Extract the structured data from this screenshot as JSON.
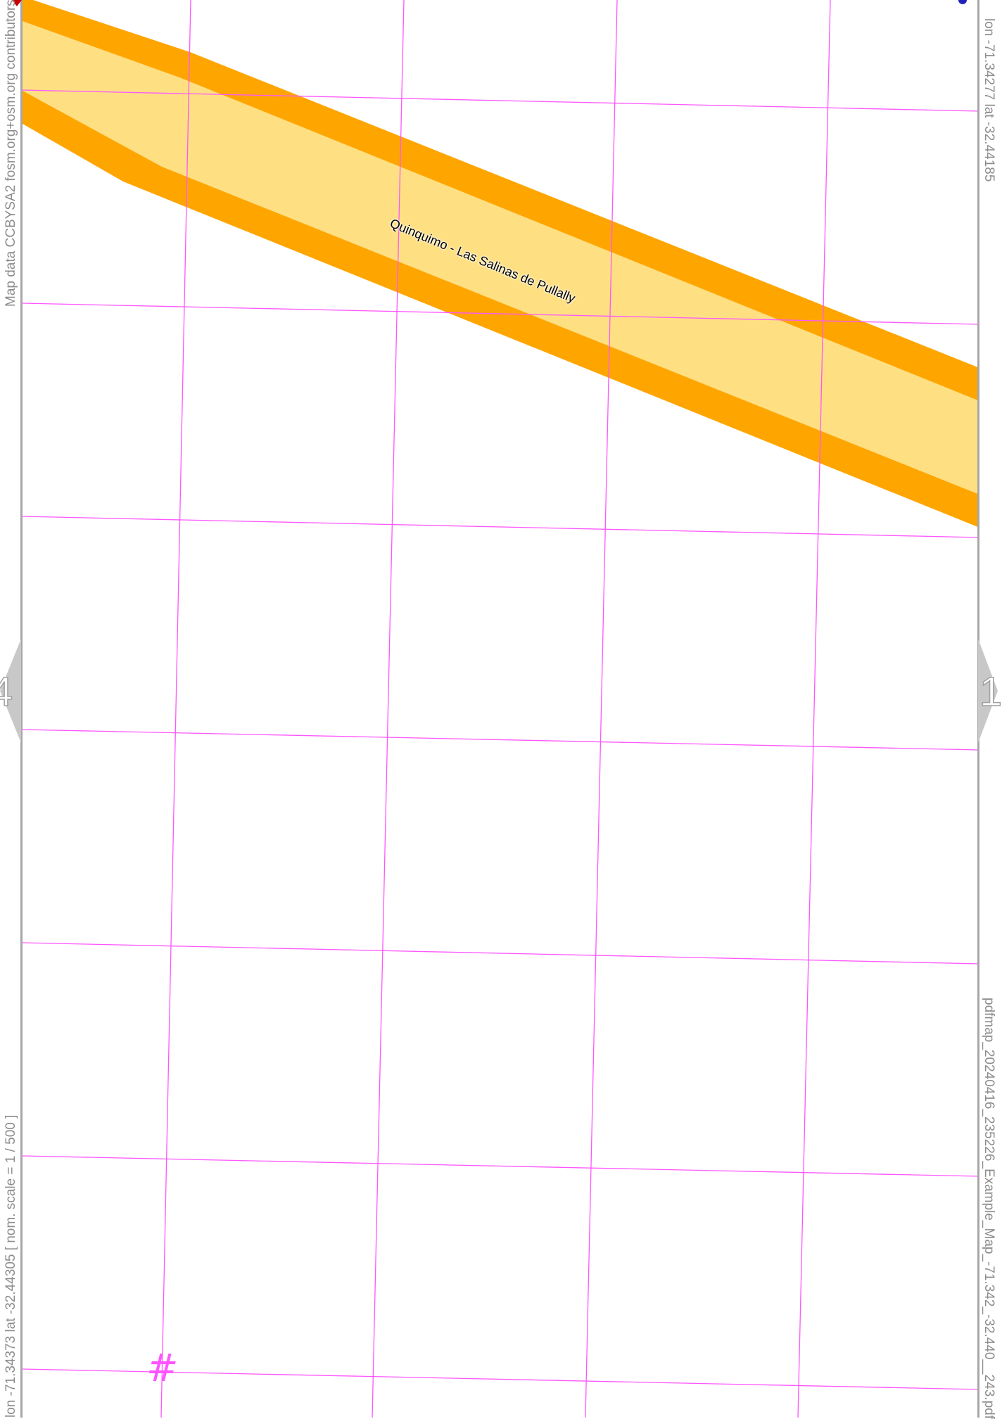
{
  "map": {
    "road_label": "Quinquimo - Las Salinas de Pullally",
    "attribution": "Map data CCBYSA2 fosm.org+osm.org contributors",
    "corner_top_right": "lon -71.34277 lat -32.44185",
    "corner_bottom_left": "lon -71.34373 lat -32.44305 [ nom. scale = 1 / 500 ]",
    "filename": "pdfmap_20240416_235226_Example_Map_-71.342_-32.440__243.pdf",
    "nav_prev_page": "4",
    "nav_next_page": "1",
    "grid_marker": "#"
  },
  "style": {
    "road_casing_color": "#ffa500",
    "road_fill_color": "#fee083",
    "grid_color": "#ff55ff",
    "frame_color": "#a6a6a6",
    "nav_arrow_color": "#c8c8c8",
    "text_color": "#8c8c8c"
  }
}
